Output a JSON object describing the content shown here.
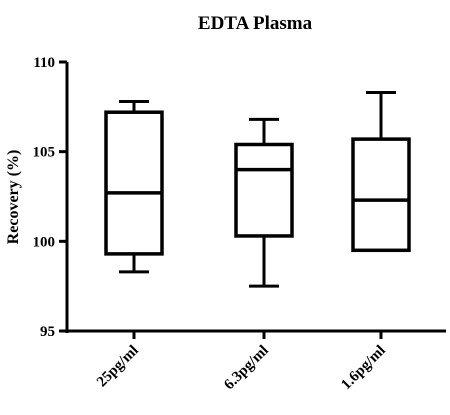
{
  "chart_data": {
    "type": "box",
    "title": "EDTA Plasma",
    "xlabel": "",
    "ylabel": "Recovery (%)",
    "ylim": [
      95,
      110
    ],
    "yticks": [
      95,
      100,
      105,
      110
    ],
    "grid": false,
    "categories": [
      "25pg/ml",
      "6.3pg/ml",
      "1.6pg/ml"
    ],
    "boxes": [
      {
        "category": "25pg/ml",
        "min": 98.3,
        "q1": 99.3,
        "median": 102.7,
        "q3": 107.2,
        "max": 107.8
      },
      {
        "category": "6.3pg/ml",
        "min": 97.5,
        "q1": 100.3,
        "median": 104.0,
        "q3": 105.4,
        "max": 106.8
      },
      {
        "category": "1.6pg/ml",
        "min": 99.5,
        "q1": 99.5,
        "median": 102.3,
        "q3": 105.7,
        "max": 108.3
      }
    ]
  }
}
